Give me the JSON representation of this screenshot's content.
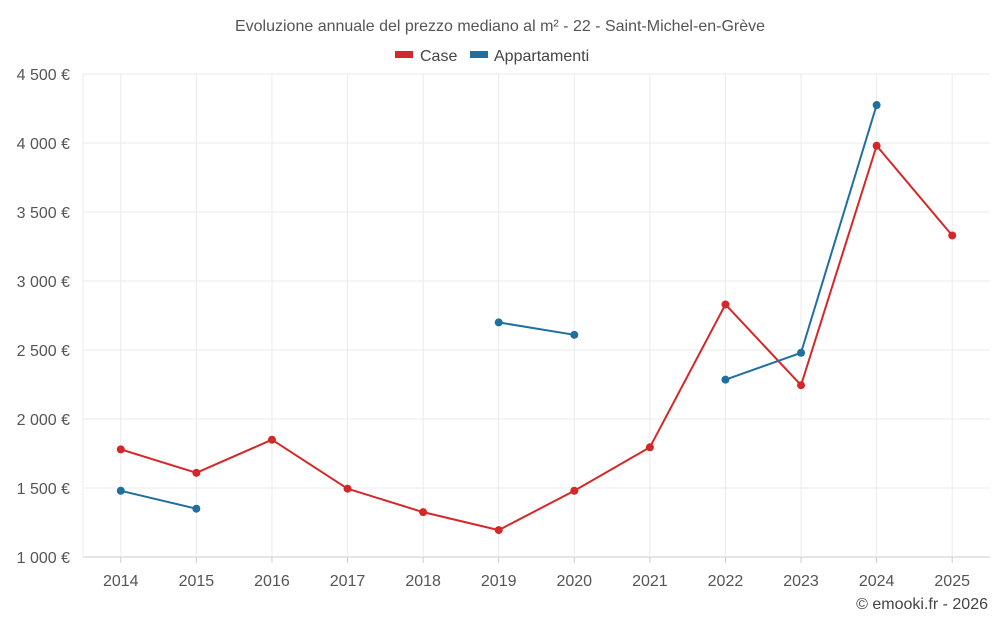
{
  "chart_data": {
    "type": "line",
    "title": "Evoluzione annuale del prezzo mediano al m² - 22 - Saint-Michel-en-Grève",
    "categories": [
      "2014",
      "2015",
      "2016",
      "2017",
      "2018",
      "2019",
      "2020",
      "2021",
      "2022",
      "2023",
      "2024",
      "2025"
    ],
    "y_ticks": [
      "1 000 €",
      "1 500 €",
      "2 000 €",
      "2 500 €",
      "3 000 €",
      "3 500 €",
      "4 000 €",
      "4 500 €"
    ],
    "ylim": [
      1000,
      4500
    ],
    "xlabel": "",
    "ylabel": "",
    "legend_position": "top-center",
    "series": [
      {
        "name": "Case",
        "color": "#d62728",
        "values": [
          1780,
          1610,
          1850,
          1495,
          1325,
          1195,
          1480,
          1795,
          2830,
          2245,
          3980,
          3330
        ]
      },
      {
        "name": "Appartamenti",
        "color": "#1f6f9f",
        "values": [
          1480,
          1350,
          null,
          null,
          null,
          2700,
          2610,
          null,
          2285,
          2480,
          4275,
          null
        ]
      }
    ]
  },
  "credit": "© emooki.fr - 2026"
}
